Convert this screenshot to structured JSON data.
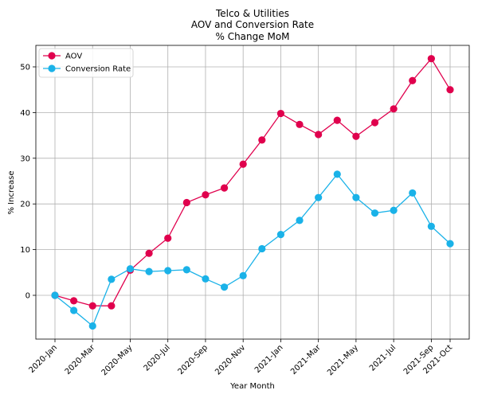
{
  "chart_data": {
    "type": "line",
    "title_lines": [
      "Telco & Utilities",
      "AOV and Conversion Rate",
      "% Change MoM"
    ],
    "xlabel": "Year Month",
    "ylabel": "% Increase",
    "ylim": [
      -9.5,
      55
    ],
    "yticks": [
      0,
      10,
      20,
      30,
      40,
      50
    ],
    "grid": true,
    "legend_position": "top-left",
    "categories": [
      "2020-Jan",
      "2020-Feb",
      "2020-Mar",
      "2020-Apr",
      "2020-May",
      "2020-Jun",
      "2020-Jul",
      "2020-Aug",
      "2020-Sep",
      "2020-Oct",
      "2020-Nov",
      "2020-Dec",
      "2021-Jan",
      "2021-Feb",
      "2021-Mar",
      "2021-Apr",
      "2021-May",
      "2021-Jun",
      "2021-Jul",
      "2021-Aug",
      "2021-Sep",
      "2021-Oct"
    ],
    "xtick_labels": [
      {
        "index": 0,
        "label": "2020-Jan"
      },
      {
        "index": 2,
        "label": "2020-Mar"
      },
      {
        "index": 4,
        "label": "2020-May"
      },
      {
        "index": 6,
        "label": "2020-Jul"
      },
      {
        "index": 8,
        "label": "2020-Sep"
      },
      {
        "index": 10,
        "label": "2020-Nov"
      },
      {
        "index": 12,
        "label": "2021-Jan"
      },
      {
        "index": 14,
        "label": "2021-Mar"
      },
      {
        "index": 16,
        "label": "2021-May"
      },
      {
        "index": 18,
        "label": "2021-Jul"
      },
      {
        "index": 20,
        "label": "2021-Sep"
      },
      {
        "index": 21,
        "label": "2021-Oct"
      }
    ],
    "series": [
      {
        "name": "AOV",
        "color": "#e0004d",
        "values": [
          0,
          -1.2,
          -2.3,
          -2.3,
          5.5,
          9.2,
          12.5,
          20.3,
          22.0,
          23.5,
          28.7,
          34.0,
          39.8,
          37.4,
          35.2,
          38.3,
          34.8,
          37.8,
          40.8,
          47.0,
          51.8,
          45.0
        ]
      },
      {
        "name": "Conversion Rate",
        "color": "#1ab2e8",
        "values": [
          0,
          -3.3,
          -6.7,
          3.5,
          5.8,
          5.2,
          5.4,
          5.6,
          3.6,
          1.8,
          4.3,
          10.2,
          13.3,
          16.4,
          21.4,
          26.5,
          21.4,
          18.0,
          18.6,
          22.4,
          15.1,
          11.3
        ]
      }
    ]
  }
}
